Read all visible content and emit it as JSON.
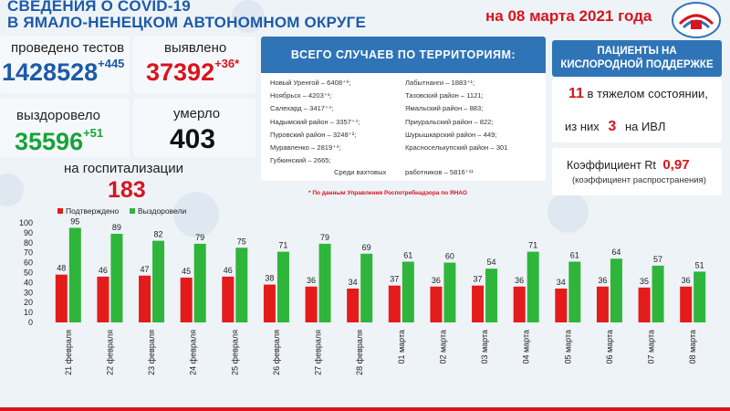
{
  "header": {
    "title_line1": "СВЕДЕНИЯ О COVID-19",
    "title_line2": "В ЯМАЛО-НЕНЕЦКОМ АВТОНОМНОМ ОКРУГЕ",
    "date": "на 08 марта 2021 года"
  },
  "stats": {
    "tests_label": "проведено тестов",
    "tests_value": "1428528",
    "tests_increase": "+445",
    "detected_label": "выявлено",
    "detected_value": "37392",
    "detected_increase": "+36*",
    "recovered_label": "выздоровело",
    "recovered_value": "35596",
    "recovered_increase": "+51",
    "died_label": "умерло",
    "died_value": "403",
    "hosp_label": "на госпитализации",
    "hosp_value": "183"
  },
  "territory": {
    "heading": "ВСЕГО СЛУЧАЕВ ПО ТЕРРИТОРИЯМ:",
    "left": [
      "Новый Уренгой – 6408⁺⁹;",
      "Ноябрьск – 4203⁺¹;",
      "Салехард – 3417⁺⁴;",
      "Надымский район – 3357⁺⁴;",
      "Пуровский район – 3248⁺²;",
      "Муравленко – 2819⁺⁴;",
      "Губкинский – 2665;"
    ],
    "right": [
      "Лабытнанги – 1883⁺¹;",
      "Тазовский район – 1121;",
      "Ямальский район – 883;",
      "Приуральский район – 822;",
      "Шурышкарский район – 449;",
      "Красноселькупский район – 301"
    ],
    "shift_label": "Среди вахтовых",
    "shift_value": "работников – 5816⁺¹¹",
    "source_note": "* По данным Управления Роспотребнадзора по ЯНАО"
  },
  "oxygen": {
    "heading_line1": "ПАЦИЕНТЫ НА",
    "heading_line2": "КИСЛОРОДНОЙ ПОДДЕРЖКЕ",
    "severe_count": "11",
    "severe_label": "в тяжелом состоянии,",
    "ventilator_prefix": "из них",
    "ventilator_count": "3",
    "ventilator_label": "на ИВЛ",
    "rt_label": "Коэффициент Rt",
    "rt_value": "0,97",
    "rt_note": "(коэффициент распространения)"
  },
  "colors": {
    "confirmed": "#e41b1b",
    "recovered": "#2fb53a",
    "brand_blue": "#2f74b7",
    "accent_red": "#d8141e"
  },
  "chart_data": {
    "type": "bar",
    "categories": [
      "21 февраля",
      "22 февраля",
      "23 февраля",
      "24 февраля",
      "25 февраля",
      "26 февраля",
      "27 февраля",
      "28 февраля",
      "01 марта",
      "02 марта",
      "03 марта",
      "04 марта",
      "05 марта",
      "06 марта",
      "07 марта",
      "08 марта"
    ],
    "series": [
      {
        "name": "Подтверждено",
        "values": [
          48,
          46,
          47,
          45,
          46,
          38,
          36,
          34,
          37,
          36,
          37,
          36,
          34,
          36,
          35,
          36
        ]
      },
      {
        "name": "Выздоровели",
        "values": [
          95,
          89,
          82,
          79,
          75,
          71,
          79,
          69,
          61,
          60,
          54,
          71,
          61,
          64,
          57,
          51
        ]
      }
    ],
    "ylim": [
      0,
      100
    ],
    "yticks": [
      0,
      10,
      20,
      30,
      40,
      50,
      60,
      70,
      80,
      90,
      100
    ],
    "legend_position": "top-left",
    "grid": false
  }
}
